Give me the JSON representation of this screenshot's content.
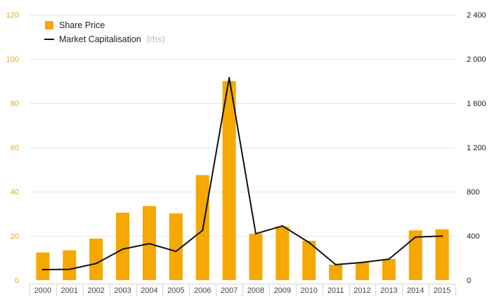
{
  "chart_data": {
    "type": "bar",
    "title": "",
    "xlabel": "",
    "ylabel": "",
    "categories": [
      "2000",
      "2001",
      "2002",
      "2003",
      "2004",
      "2005",
      "2006",
      "2007",
      "2008",
      "2009",
      "2010",
      "2011",
      "2012",
      "2013",
      "2014",
      "2015"
    ],
    "series": [
      {
        "name": "Share Price",
        "type": "bar",
        "axis": "left",
        "color": "#f5a800",
        "values": [
          12.5,
          13.5,
          18.8,
          30.5,
          33.5,
          30.2,
          47.5,
          90,
          21,
          24.2,
          17.8,
          7,
          8,
          9.5,
          22.5,
          23
        ]
      },
      {
        "name": "Market Capitalisation",
        "name_note": "(rhs)",
        "type": "line",
        "axis": "right",
        "color": "#111111",
        "values": [
          95,
          98,
          150,
          280,
          330,
          260,
          450,
          1830,
          420,
          490,
          340,
          140,
          160,
          190,
          390,
          398
        ]
      }
    ],
    "ylim_left": [
      0,
      120
    ],
    "ylim_right": [
      0,
      2400
    ],
    "yticks_left": [
      0,
      20,
      40,
      60,
      80,
      100,
      120
    ],
    "yticks_right": [
      0,
      400,
      800,
      1200,
      1600,
      2000,
      2400
    ],
    "yticks_right_labels": [
      "0",
      "400",
      "800",
      "1 200",
      "1 600",
      "2 000",
      "2 400"
    ],
    "grid": "horizontal",
    "legend_position": "top-left"
  }
}
